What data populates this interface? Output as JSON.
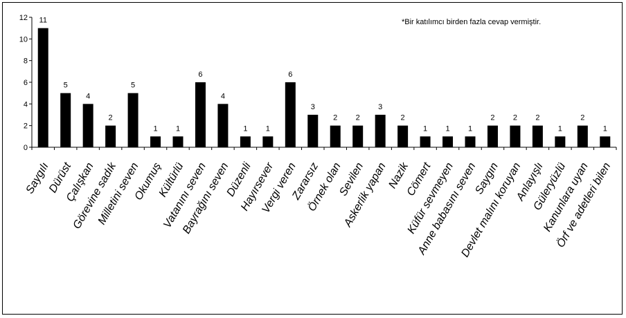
{
  "note": "*Bir katılımcı birden fazla cevap vermiştir.",
  "chart_data": {
    "type": "bar",
    "title": "",
    "xlabel": "",
    "ylabel": "",
    "ylim": [
      0,
      12
    ],
    "yticks": [
      0,
      2,
      4,
      6,
      8,
      10,
      12
    ],
    "grid": false,
    "bar_color": "#000000",
    "categories": [
      "Saygılı",
      "Dürüst",
      "Çalışkan",
      "Görevine sadık",
      "Milletini seven",
      "Okumuş",
      "Kültürlü",
      "Vatanını seven",
      "Bayrağını seven",
      "Düzenli",
      "Hayırsever",
      "Vergi veren",
      "Zararsız",
      "Örnek olan",
      "Sevilen",
      "Askerlik yapan",
      "Nazik",
      "Cömert",
      "Küfür sevmeyen",
      "Anne babasını seven",
      "Saygın",
      "Devlet malını koruyan",
      "Anlayışlı",
      "Güleryüzlü",
      "Kanunlara uyan",
      "Örf ve adetleri bilen"
    ],
    "values": [
      11,
      5,
      4,
      2,
      5,
      1,
      1,
      6,
      4,
      1,
      1,
      6,
      3,
      2,
      2,
      3,
      2,
      1,
      1,
      1,
      2,
      2,
      2,
      1,
      2,
      1
    ]
  }
}
